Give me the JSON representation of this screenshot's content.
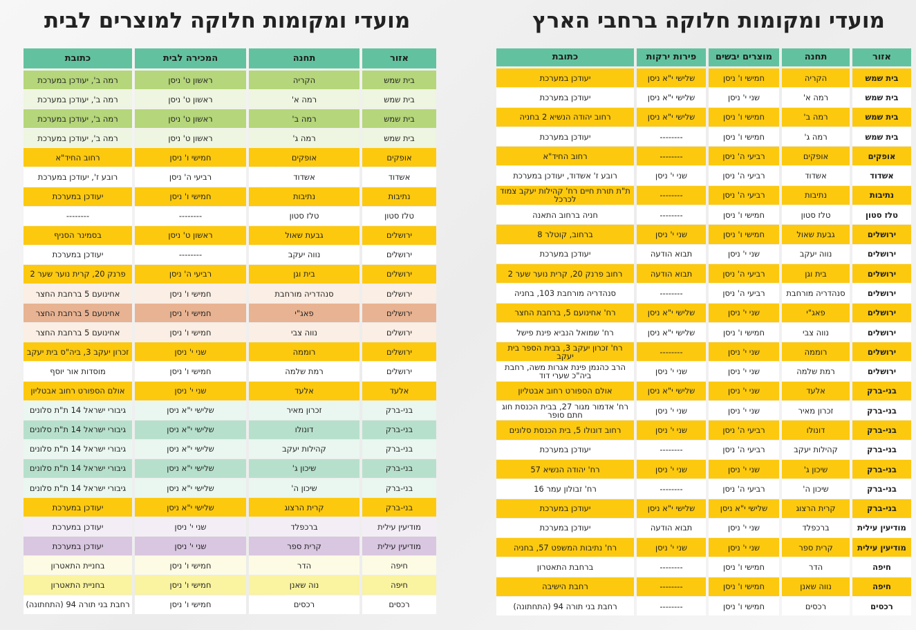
{
  "right": {
    "title": "מועדי ומקומות חלוקה ברחבי הארץ",
    "columns": [
      "אזור",
      "תחנה",
      "מוצרים יבשים",
      "פירות ירקות",
      "כתובת"
    ],
    "rows": [
      [
        "בית שמש",
        "הקריה",
        "חמישי ו' ניסן",
        "שלישי י\"א ניסן",
        "יעודכן במערכת"
      ],
      [
        "בית שמש",
        "רמה א'",
        "שני י' ניסן",
        "שלישי י\"א ניסן",
        "יעודכן במערכת"
      ],
      [
        "בית שמש",
        "רמה ב'",
        "חמישי ו' ניסן",
        "שלישי י\"א ניסן",
        "רחוב יהודה הנשיא 2 בחניה"
      ],
      [
        "בית שמש",
        "רמה ג'",
        "חמישי ו' ניסן",
        "--------",
        "יעודכן במערכת"
      ],
      [
        "אופקים",
        "אופקים",
        "רביעי ה' ניסן",
        "--------",
        "רחוב החיד\"א"
      ],
      [
        "אשדוד",
        "אשדוד",
        "רביעי ה' ניסן",
        "שני י' ניסן",
        "רובע ז' אשדוד, יעודכן במערכת"
      ],
      [
        "נתיבות",
        "נתיבות",
        "רביעי ה' ניסן",
        "--------",
        "ת\"ת תורת חיים רח' קהילות יעקב צמוד לכרכל"
      ],
      [
        "טלז סטון",
        "טלז סטון",
        "חמישי ו' ניסן",
        "--------",
        "חניה ברחוב התאנה"
      ],
      [
        "ירושלים",
        "גבעת שאול",
        "חמישי ו' ניסן",
        "שני י' ניסן",
        "ברחוב, קוטלר 8"
      ],
      [
        "ירושלים",
        "נווה יעקב",
        "שני י' ניסן",
        "תבוא הודעה",
        "יעודכן במערכת"
      ],
      [
        "ירושלים",
        "בית וגן",
        "רביעי ה' ניסן",
        "תבוא הודעה",
        "רחוב פרנק 20, קרית נוער שער 2"
      ],
      [
        "ירושלים",
        "סנהדריה מורחבת",
        "רביעי ה' ניסן",
        "--------",
        "סנהדריה מורחבת 103, בחניה"
      ],
      [
        "ירושלים",
        "פאג\"י",
        "שני י' ניסן",
        "שלישי י\"א ניסן",
        "רח' אחינועם 5, ברחבת החצר"
      ],
      [
        "ירושלים",
        "נווה צבי",
        "חמישי ו' ניסן",
        "שלישי י\"א ניסן",
        "רח' שמואל הנביא פינת פישל"
      ],
      [
        "ירושלים",
        "רוממה",
        "שני י' ניסן",
        "--------",
        "רח' זכרון יעקב 3, בבית הספר בית יעקב"
      ],
      [
        "ירושלים",
        "רמת שלמה",
        "שני י' ניסן",
        "שני י' ניסן",
        "הרב כהנמן פינת אגרות משה, רחבת ביה\"כ שערי דוד"
      ],
      [
        "בני-ברק",
        "אלעד",
        "שני י' ניסן",
        "שלישי י\"א ניסן",
        "אולם הספורט רחוב אבטליון"
      ],
      [
        "בני-ברק",
        "זכרון מאיר",
        "שני י' ניסן",
        "שני י' ניסן",
        "רח' אדמור מגור 27, בבית הכנסת חוג חתם סופר"
      ],
      [
        "בני-ברק",
        "דונולו",
        "רביעי ה' ניסן",
        "שני י' ניסן",
        "רחוב דונולו 5, בית הכנסת סלונים"
      ],
      [
        "בני-ברק",
        "קהילות יעקב",
        "רביעי ה' ניסן",
        "--------",
        "יעודכן במערכת"
      ],
      [
        "בני-ברק",
        "שיכון ג'",
        "שני י' ניסן",
        "שני י' ניסן",
        "רח' יהודה הנשיא 57"
      ],
      [
        "בני-ברק",
        "שיכון ה'",
        "רביעי ה' ניסן",
        "--------",
        "רח' זבולון עמר 16"
      ],
      [
        "בני-ברק",
        "קרית הרצוג",
        "שלישי י\"א ניסן",
        "שלישי י\"א ניסן",
        "יעודכן במערכת"
      ],
      [
        "מודיעין עילית",
        "ברכפלד",
        "שני י' ניסן",
        "תבוא הודעה",
        "יעודכן במערכת"
      ],
      [
        "מודיעין עילית",
        "קרית ספר",
        "שני י' ניסן",
        "שני י' ניסן",
        "רח' נתיבות המשפט 57, בחניה"
      ],
      [
        "חיפה",
        "הדר",
        "חמישי ו' ניסן",
        "--------",
        "ברחבת התאטרון"
      ],
      [
        "חיפה",
        "נווה שאנן",
        "חמישי ו' ניסן",
        "--------",
        "רחבת הישיבה"
      ],
      [
        "רכסים",
        "רכסים",
        "חמישי ו' ניסן",
        "--------",
        "רחבת בני תורה 94 (התחתונה)"
      ]
    ],
    "row_colors": [
      "#fcc90f",
      "#ffffff",
      "#fcc90f",
      "#ffffff",
      "#fcc90f",
      "#ffffff",
      "#fcc90f",
      "#ffffff",
      "#fcc90f",
      "#ffffff",
      "#fcc90f",
      "#ffffff",
      "#fcc90f",
      "#ffffff",
      "#fcc90f",
      "#ffffff",
      "#fcc90f",
      "#ffffff",
      "#fcc90f",
      "#ffffff",
      "#fcc90f",
      "#ffffff",
      "#fcc90f",
      "#ffffff",
      "#fcc90f",
      "#ffffff",
      "#fcc90f",
      "#ffffff"
    ]
  },
  "left": {
    "title": "מועדי ומקומות חלוקה למוצרים לבית",
    "columns": [
      "אזור",
      "תחנה",
      "המכירה לבית",
      "כתובת"
    ],
    "rows": [
      [
        "בית שמש",
        "הקריה",
        "ראשון ט' ניסן",
        "רמה ב', יעודכן במערכת"
      ],
      [
        "בית שמש",
        "רמה א'",
        "ראשון ט' ניסן",
        "רמה ב', יעודכן במערכת"
      ],
      [
        "בית שמש",
        "רמה ב'",
        "ראשון ט' ניסן",
        "רמה ב', יעודכן במערכת"
      ],
      [
        "בית שמש",
        "רמה ג'",
        "ראשון ט' ניסן",
        "רמה ב', יעודכן במערכת"
      ],
      [
        "אופקים",
        "אופקים",
        "חמישי ו' ניסן",
        "רחוב החיד\"א"
      ],
      [
        "אשדוד",
        "אשדוד",
        "רביעי ה' ניסן",
        "רובע ז', יעודכן במערכת"
      ],
      [
        "נתיבות",
        "נתיבות",
        "חמישי ו' ניסן",
        "יעודכן במערכת"
      ],
      [
        "טלז סטון",
        "טלז סטון",
        "--------",
        "--------"
      ],
      [
        "ירושלים",
        "גבעת שאול",
        "ראשון ט' ניסן",
        "בסמינר הסניף"
      ],
      [
        "ירושלים",
        "נווה יעקב",
        "--------",
        "יעודכן במערכת"
      ],
      [
        "ירושלים",
        "בית וגן",
        "רביעי ה' ניסן",
        "פרנק 20, קרית נוער שער 2"
      ],
      [
        "ירושלים",
        "סנהדריה מורחבת",
        "חמישי ו' ניסן",
        "אחינועם 5 ברחבת החצר"
      ],
      [
        "ירושלים",
        "פאג\"י",
        "חמישי ו' ניסן",
        "אחינועם 5 ברחבת החצר"
      ],
      [
        "ירושלים",
        "נווה צבי",
        "חמישי ו' ניסן",
        "אחינועם 5 ברחבת החצר"
      ],
      [
        "ירושלים",
        "רוממה",
        "שני י' ניסן",
        "זכרון יעקב 3, ביה\"ס בית יעקב"
      ],
      [
        "ירושלים",
        "רמת שלמה",
        "חמישי ו' ניסן",
        "מוסדות אור יוסף"
      ],
      [
        "אלעד",
        "אלעד",
        "שני י' ניסן",
        "אולם הספורט רחוב אבטליון"
      ],
      [
        "בני-ברק",
        "זכרון מאיר",
        "שלישי י\"א ניסן",
        "גיבורי ישראל 14 ת\"ת סלונים"
      ],
      [
        "בני-ברק",
        "דונולו",
        "שלישי י\"א ניסן",
        "גיבורי ישראל 14 ת\"ת סלונים"
      ],
      [
        "בני-ברק",
        "קהילות יעקב",
        "שלישי י\"א ניסן",
        "גיבורי ישראל 14 ת\"ת סלונים"
      ],
      [
        "בני-ברק",
        "שיכון ג'",
        "שלישי י\"א ניסן",
        "גיבורי ישראל 14 ת\"ת סלונים"
      ],
      [
        "בני-ברק",
        "שיכון ה'",
        "שלישי י\"א ניסן",
        "גיבורי ישראל 14 ת\"ת סלונים"
      ],
      [
        "בני-ברק",
        "קרית הרצוג",
        "שלישי י\"א ניסן",
        "יעודכן במערכת"
      ],
      [
        "מודיעין עילית",
        "ברכפלד",
        "שני י' ניסן",
        "יעודכן במערכת"
      ],
      [
        "מודיעין עילית",
        "קרית ספר",
        "שני י' ניסן",
        "יעודכן במערכת"
      ],
      [
        "חיפה",
        "הדר",
        "חמישי ו' ניסן",
        "בחניית התאטרון"
      ],
      [
        "חיפה",
        "נוה שאנן",
        "חמישי ו' ניסן",
        "בחניית התאטרון"
      ],
      [
        "רכסים",
        "רכסים",
        "חמישי ו' ניסן",
        "רחבת בני תורה 94 (התחתונה)"
      ]
    ],
    "row_colors": [
      "#b5d67a",
      "#eef5e0",
      "#b5d67a",
      "#eef5e0",
      "#fcc90f",
      "#ffffff",
      "#fcc90f",
      "#ffffff",
      "#fcc90f",
      "#ffffff",
      "#fcc90f",
      "#fbeee4",
      "#e8b392",
      "#fbeee4",
      "#fcc90f",
      "#ffffff",
      "#fcc90f",
      "#eaf6f0",
      "#b7e0cc",
      "#eaf6f0",
      "#b7e0cc",
      "#eaf6f0",
      "#fcc90f",
      "#f3eef6",
      "#d9c6e0",
      "#fdfbe3",
      "#faf3a0",
      "#ffffff"
    ]
  }
}
